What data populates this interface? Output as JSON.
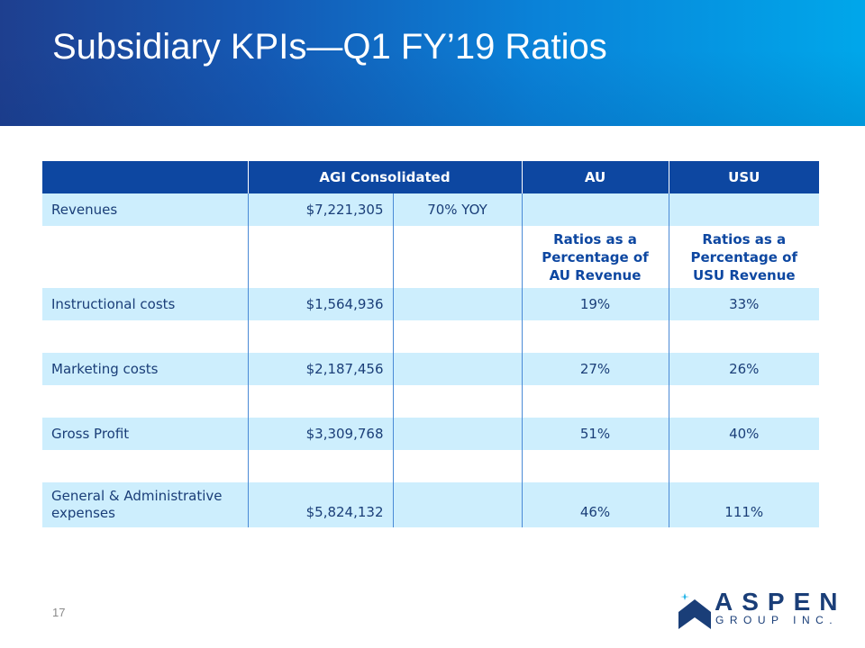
{
  "header": {
    "title": "Subsidiary KPIs—Q1 FY’19 Ratios"
  },
  "table": {
    "columns": [
      "",
      "AGI Consolidated",
      "AU",
      "USU"
    ],
    "revenues": {
      "label": "Revenues",
      "value": "$7,221,305",
      "growth": "70% YOY"
    },
    "ratio_headers": {
      "au": [
        "Ratios as a",
        "Percentage of",
        "AU Revenue"
      ],
      "usu": [
        "Ratios as a",
        "Percentage of",
        "USU Revenue"
      ]
    },
    "rows": [
      {
        "label": "Instructional costs",
        "value": "$1,564,936",
        "au": "19%",
        "usu": "33%"
      },
      {
        "label": "Marketing costs",
        "value": "$2,187,456",
        "au": "27%",
        "usu": "26%"
      },
      {
        "label": "Gross Profit",
        "value": "$3,309,768",
        "au": "51%",
        "usu": "40%"
      },
      {
        "label_lines": [
          "General & Administrative",
          "expenses"
        ],
        "value": "$5,824,132",
        "au": "46%",
        "usu": "111%"
      }
    ]
  },
  "footer": {
    "page_number": "17",
    "logo_name": "ASPEN",
    "logo_sub": "GROUP INC.",
    "colors": {
      "navy": "#1a3e78",
      "header_blue": "#0d47a1",
      "band": "#cdeefd",
      "accent": "#29b6e8"
    }
  }
}
